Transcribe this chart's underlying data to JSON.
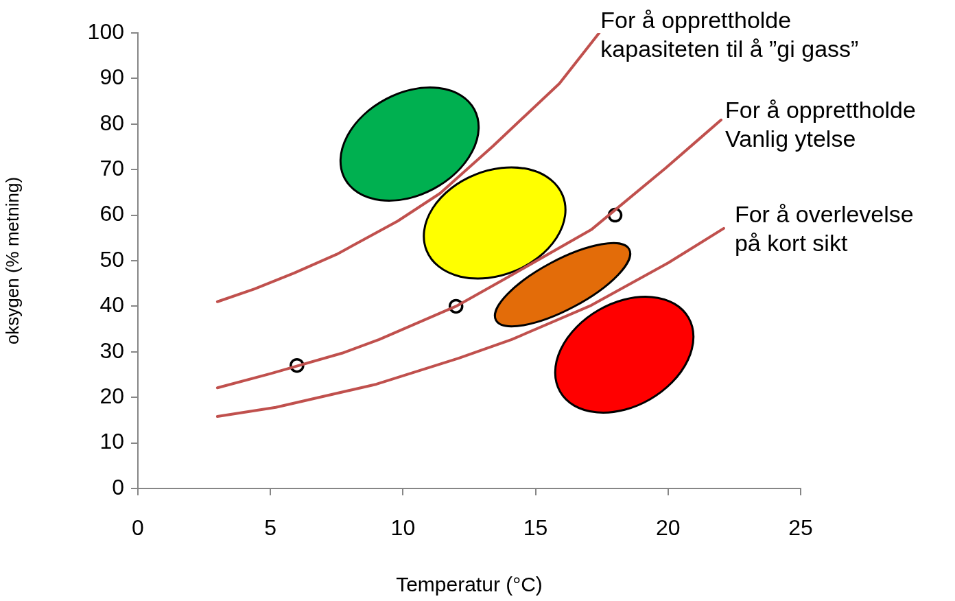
{
  "chart_data": {
    "type": "line",
    "xlabel": "Temperatur (°C)",
    "ylabel": "oksygen (% metning)",
    "xlim": [
      0,
      25
    ],
    "xticks": [
      0,
      5,
      10,
      15,
      20,
      25
    ],
    "ylim": [
      0,
      100
    ],
    "yticks": [
      0,
      10,
      20,
      30,
      40,
      50,
      60,
      70,
      80,
      90,
      100
    ],
    "grid": false,
    "legend": false,
    "line_style": "solid",
    "series": [
      {
        "type": "line",
        "color": "#c0504d",
        "x": [
          3,
          4.4,
          5.9,
          7.5,
          9.8,
          11.4,
          13.4,
          15.9,
          17.4
        ],
        "values": [
          41,
          43.8,
          47.3,
          51.4,
          58.7,
          64.8,
          75.2,
          88.9,
          100
        ]
      },
      {
        "type": "line",
        "color": "#c0504d",
        "x": [
          3,
          5,
          7.7,
          9.1,
          12,
          13.9,
          17.1,
          19.9,
          22
        ],
        "values": [
          22.1,
          25.2,
          29.7,
          32.7,
          40,
          46.2,
          56.8,
          70.3,
          80.9
        ]
      },
      {
        "type": "line",
        "color": "#c0504d",
        "x": [
          3,
          5.2,
          9,
          12.1,
          14.1,
          17.1,
          20,
          22.1
        ],
        "values": [
          15.8,
          17.8,
          22.9,
          28.6,
          32.7,
          40.2,
          49.5,
          57.1
        ]
      },
      {
        "type": "scatter",
        "color": "#000000",
        "marker": "circle",
        "x": [
          6,
          12,
          18
        ],
        "values": [
          27,
          40,
          60
        ]
      }
    ],
    "annotations": [
      {
        "text": "For å opprettholde kapasiteten til å ”gi gass”",
        "x": 17.4,
        "y": 100
      },
      {
        "text": "For å opprettholde Vanlig ytelse",
        "x": 22,
        "y": 80.9
      },
      {
        "text": "For å overlevelse på kort sikt",
        "x": 22.1,
        "y": 57.1
      }
    ]
  }
}
